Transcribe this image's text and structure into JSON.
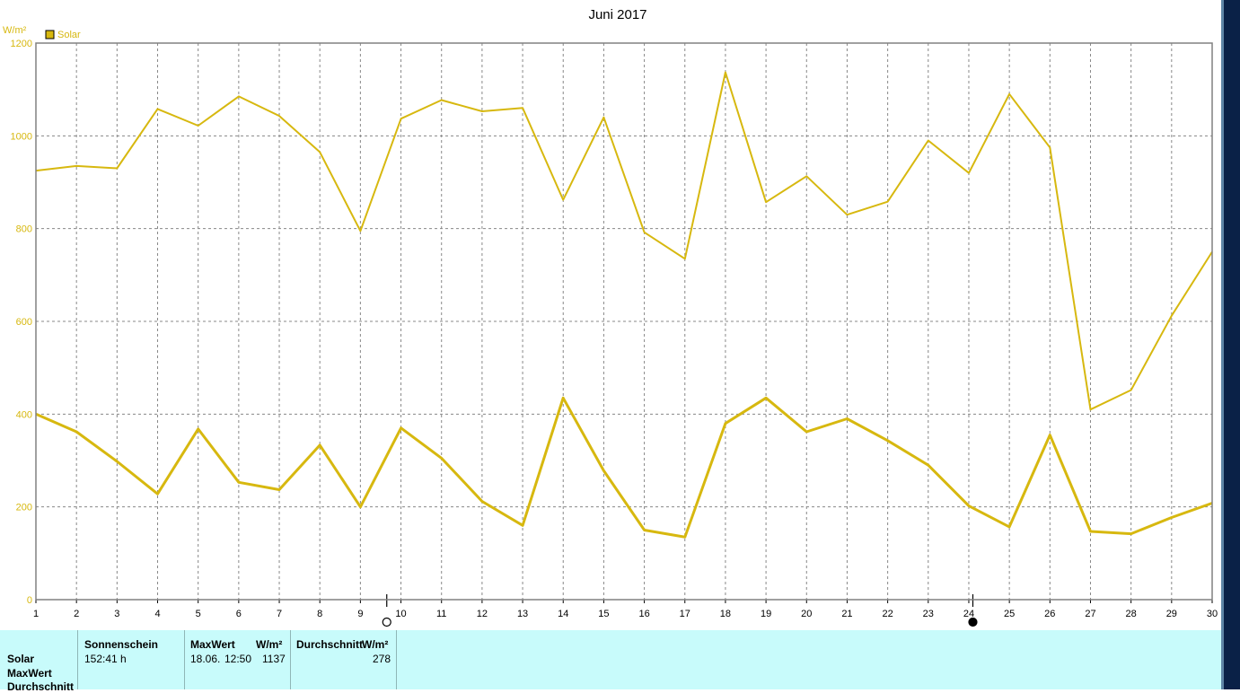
{
  "chart_data": {
    "type": "line",
    "title": "Juni 2017",
    "ylabel": "W/m²",
    "xlabel": "",
    "ylim": [
      0,
      1200
    ],
    "y_ticks": [
      0,
      200,
      400,
      600,
      800,
      1000,
      1200
    ],
    "x": [
      1,
      2,
      3,
      4,
      5,
      6,
      7,
      8,
      9,
      10,
      11,
      12,
      13,
      14,
      15,
      16,
      17,
      18,
      19,
      20,
      21,
      22,
      23,
      24,
      25,
      26,
      27,
      28,
      29,
      30
    ],
    "legend": "top-left",
    "grid": true,
    "series": [
      {
        "name": "Solar",
        "role": "max",
        "color": "#d7b80f",
        "values": [
          925,
          935,
          930,
          1058,
          1022,
          1085,
          1043,
          965,
          795,
          1037,
          1077,
          1053,
          1060,
          862,
          1040,
          792,
          735,
          1137,
          857,
          913,
          830,
          858,
          990,
          920,
          1090,
          975,
          410,
          452,
          612,
          750
        ]
      },
      {
        "name": "",
        "role": "avg",
        "color": "#d7b80f",
        "values": [
          400,
          362,
          298,
          228,
          368,
          253,
          237,
          333,
          200,
          370,
          305,
          212,
          160,
          435,
          278,
          150,
          135,
          380,
          435,
          362,
          390,
          343,
          290,
          202,
          157,
          355,
          147,
          142,
          177,
          208
        ]
      }
    ],
    "moon_markers": [
      {
        "x": 9.65,
        "phase": "full"
      },
      {
        "x": 24.1,
        "phase": "new"
      }
    ]
  },
  "table": {
    "rows": [
      "Solar",
      "MaxWert",
      "Durchschnitt"
    ],
    "sunshine_header": "Sonnenschein",
    "sunshine_value": "152:41 h",
    "max_header": "MaxWert",
    "max_unit": "W/m²",
    "max_date": "18.06.",
    "max_time": "12:50",
    "max_value": "1137",
    "avg_header": "Durchschnitt",
    "avg_unit": "W/m²",
    "avg_value": "278"
  }
}
